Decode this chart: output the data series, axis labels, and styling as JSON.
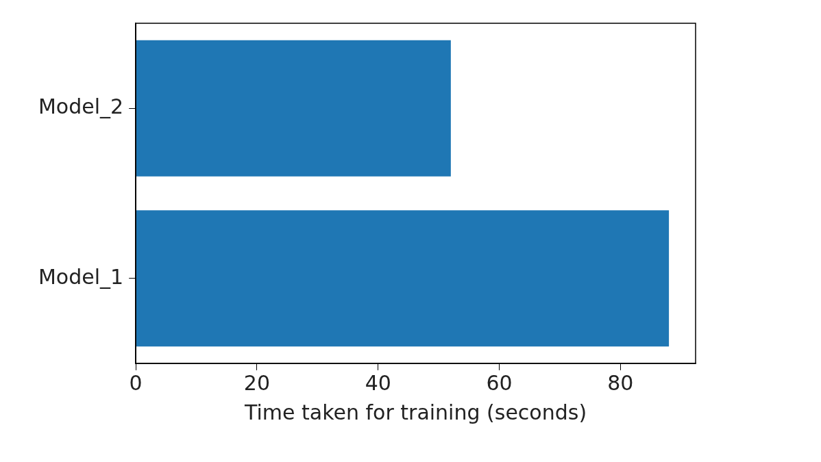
{
  "chart_data": {
    "type": "bar",
    "orientation": "horizontal",
    "categories": [
      "Model_2",
      "Model_1"
    ],
    "values": [
      52,
      88
    ],
    "color": "#1f77b4",
    "xlabel": "Time taken for training (seconds)",
    "xlim": [
      0,
      92.4
    ],
    "xticks": [
      0,
      20,
      40,
      60,
      80
    ],
    "grid": false,
    "legend": false
  }
}
